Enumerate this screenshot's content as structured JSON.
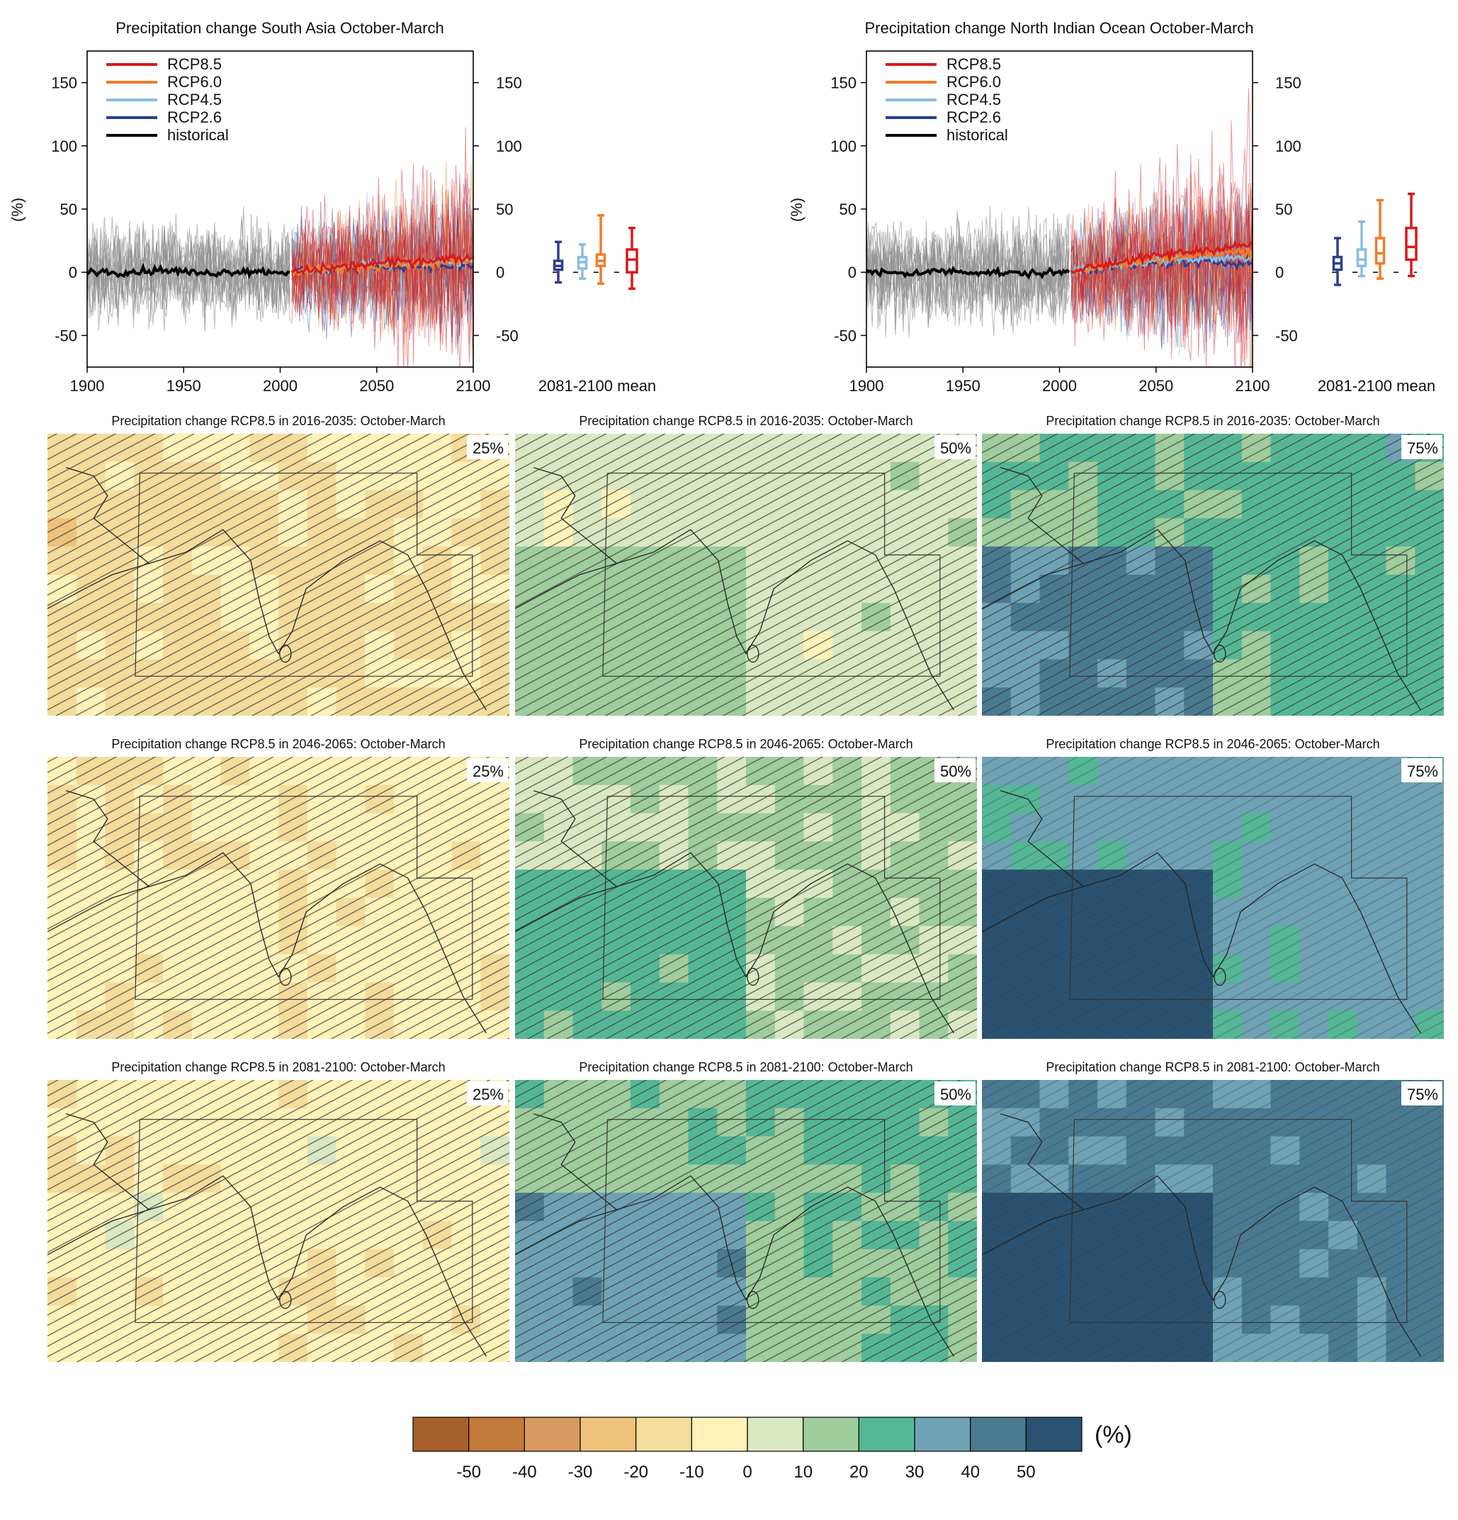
{
  "colors": {
    "rcp85": "#d7191c",
    "rcp60": "#f07c28",
    "rcp45": "#88bde0",
    "rcp26": "#2c3f8f",
    "historical": "#000000",
    "ensemble_gray": "#8c8c8c",
    "colorbar": [
      "#a8602b",
      "#c47a3a",
      "#d79b5f",
      "#eec27a",
      "#f5dc9c",
      "#fff2b8",
      "#d9e8c2",
      "#9fcd9d",
      "#55b796",
      "#6fa2b5",
      "#4a7a92",
      "#2a5270"
    ]
  },
  "chart_data": [
    {
      "type": "line",
      "title": "Precipitation change South Asia October-March",
      "ylabel": "(%)",
      "xlabel": "",
      "x_range": [
        1900,
        2100
      ],
      "ylim": [
        -75,
        175
      ],
      "x_ticks": [
        "1900",
        "1950",
        "2000",
        "2050",
        "2100"
      ],
      "y_ticks": [
        "150",
        "100",
        "50",
        "0",
        "-50"
      ],
      "legend": [
        "RCP8.5",
        "RCP6.0",
        "RCP4.5",
        "RCP2.6",
        "historical"
      ],
      "boxplot_label": "2081-2100 mean",
      "boxplots": [
        {
          "name": "RCP2.6",
          "min": -8,
          "q1": 2,
          "median": 5,
          "q3": 9,
          "max": 24
        },
        {
          "name": "RCP4.5",
          "min": -5,
          "q1": 3,
          "median": 8,
          "q3": 12,
          "max": 22
        },
        {
          "name": "RCP6.0",
          "min": -9,
          "q1": 5,
          "median": 9,
          "q3": 14,
          "max": 45
        },
        {
          "name": "RCP8.5",
          "min": -13,
          "q1": 0,
          "median": 10,
          "q3": 18,
          "max": 35
        }
      ],
      "mean_series": [
        {
          "name": "historical",
          "x": [
            1900,
            1920,
            1940,
            1960,
            1980,
            2005
          ],
          "values": [
            1,
            0,
            2,
            -1,
            1,
            0
          ]
        },
        {
          "name": "RCP2.6",
          "x": [
            2006,
            2030,
            2060,
            2100
          ],
          "values": [
            0,
            3,
            5,
            5
          ]
        },
        {
          "name": "RCP4.5",
          "x": [
            2006,
            2030,
            2060,
            2100
          ],
          "values": [
            0,
            3,
            6,
            8
          ]
        },
        {
          "name": "RCP6.0",
          "x": [
            2006,
            2030,
            2060,
            2100
          ],
          "values": [
            0,
            3,
            6,
            9
          ]
        },
        {
          "name": "RCP8.5",
          "x": [
            2006,
            2030,
            2060,
            2100
          ],
          "values": [
            0,
            4,
            8,
            12
          ]
        }
      ]
    },
    {
      "type": "line",
      "title": "Precipitation change North Indian Ocean October-March",
      "ylabel": "(%)",
      "xlabel": "",
      "x_range": [
        1900,
        2100
      ],
      "ylim": [
        -75,
        175
      ],
      "x_ticks": [
        "1900",
        "1950",
        "2000",
        "2050",
        "2100"
      ],
      "y_ticks": [
        "150",
        "100",
        "50",
        "0",
        "-50"
      ],
      "legend": [
        "RCP8.5",
        "RCP6.0",
        "RCP4.5",
        "RCP2.6",
        "historical"
      ],
      "boxplot_label": "2081-2100 mean",
      "boxplots": [
        {
          "name": "RCP2.6",
          "min": -10,
          "q1": 2,
          "median": 7,
          "q3": 12,
          "max": 27
        },
        {
          "name": "RCP4.5",
          "min": -3,
          "q1": 5,
          "median": 10,
          "q3": 18,
          "max": 40
        },
        {
          "name": "RCP6.0",
          "min": -5,
          "q1": 7,
          "median": 15,
          "q3": 27,
          "max": 57
        },
        {
          "name": "RCP8.5",
          "min": -3,
          "q1": 10,
          "median": 20,
          "q3": 35,
          "max": 62
        }
      ],
      "mean_series": [
        {
          "name": "historical",
          "x": [
            1900,
            1920,
            1940,
            1960,
            1980,
            2005
          ],
          "values": [
            0,
            -1,
            1,
            0,
            -1,
            0
          ]
        },
        {
          "name": "RCP2.6",
          "x": [
            2006,
            2030,
            2060,
            2100
          ],
          "values": [
            1,
            5,
            8,
            8
          ]
        },
        {
          "name": "RCP4.5",
          "x": [
            2006,
            2030,
            2060,
            2100
          ],
          "values": [
            1,
            6,
            10,
            12
          ]
        },
        {
          "name": "RCP6.0",
          "x": [
            2006,
            2030,
            2060,
            2100
          ],
          "values": [
            1,
            6,
            12,
            17
          ]
        },
        {
          "name": "RCP8.5",
          "x": [
            2006,
            2030,
            2060,
            2100
          ],
          "values": [
            1,
            8,
            15,
            22
          ]
        }
      ]
    },
    {
      "type": "heatmap",
      "title": "Precipitation change RCP8.5 in 2016-2035, 2046-2065, 2081-2100: October-March",
      "panels": [
        {
          "title": "Precipitation change RCP8.5 in 2016-2035: October-March",
          "percentile": "25%",
          "level": -8
        },
        {
          "title": "Precipitation change RCP8.5 in 2016-2035: October-March",
          "percentile": "50%",
          "level": 8
        },
        {
          "title": "Precipitation change RCP8.5 in 2016-2035: October-March",
          "percentile": "75%",
          "level": 25
        },
        {
          "title": "Precipitation change RCP8.5 in 2046-2065: October-March",
          "percentile": "25%",
          "level": -5
        },
        {
          "title": "Precipitation change RCP8.5 in 2046-2065: October-March",
          "percentile": "50%",
          "level": 14
        },
        {
          "title": "Precipitation change RCP8.5 in 2046-2065: October-March",
          "percentile": "75%",
          "level": 36
        },
        {
          "title": "Precipitation change RCP8.5 in 2081-2100: October-March",
          "percentile": "25%",
          "level": -4
        },
        {
          "title": "Precipitation change RCP8.5 in 2081-2100: October-March",
          "percentile": "50%",
          "level": 22
        },
        {
          "title": "Precipitation change RCP8.5 in 2081-2100: October-March",
          "percentile": "75%",
          "level": 45
        }
      ],
      "colorbar": {
        "ticks": [
          "-50",
          "-40",
          "-30",
          "-20",
          "-10",
          "0",
          "10",
          "20",
          "30",
          "40",
          "50"
        ],
        "unit": "(%)"
      }
    }
  ]
}
